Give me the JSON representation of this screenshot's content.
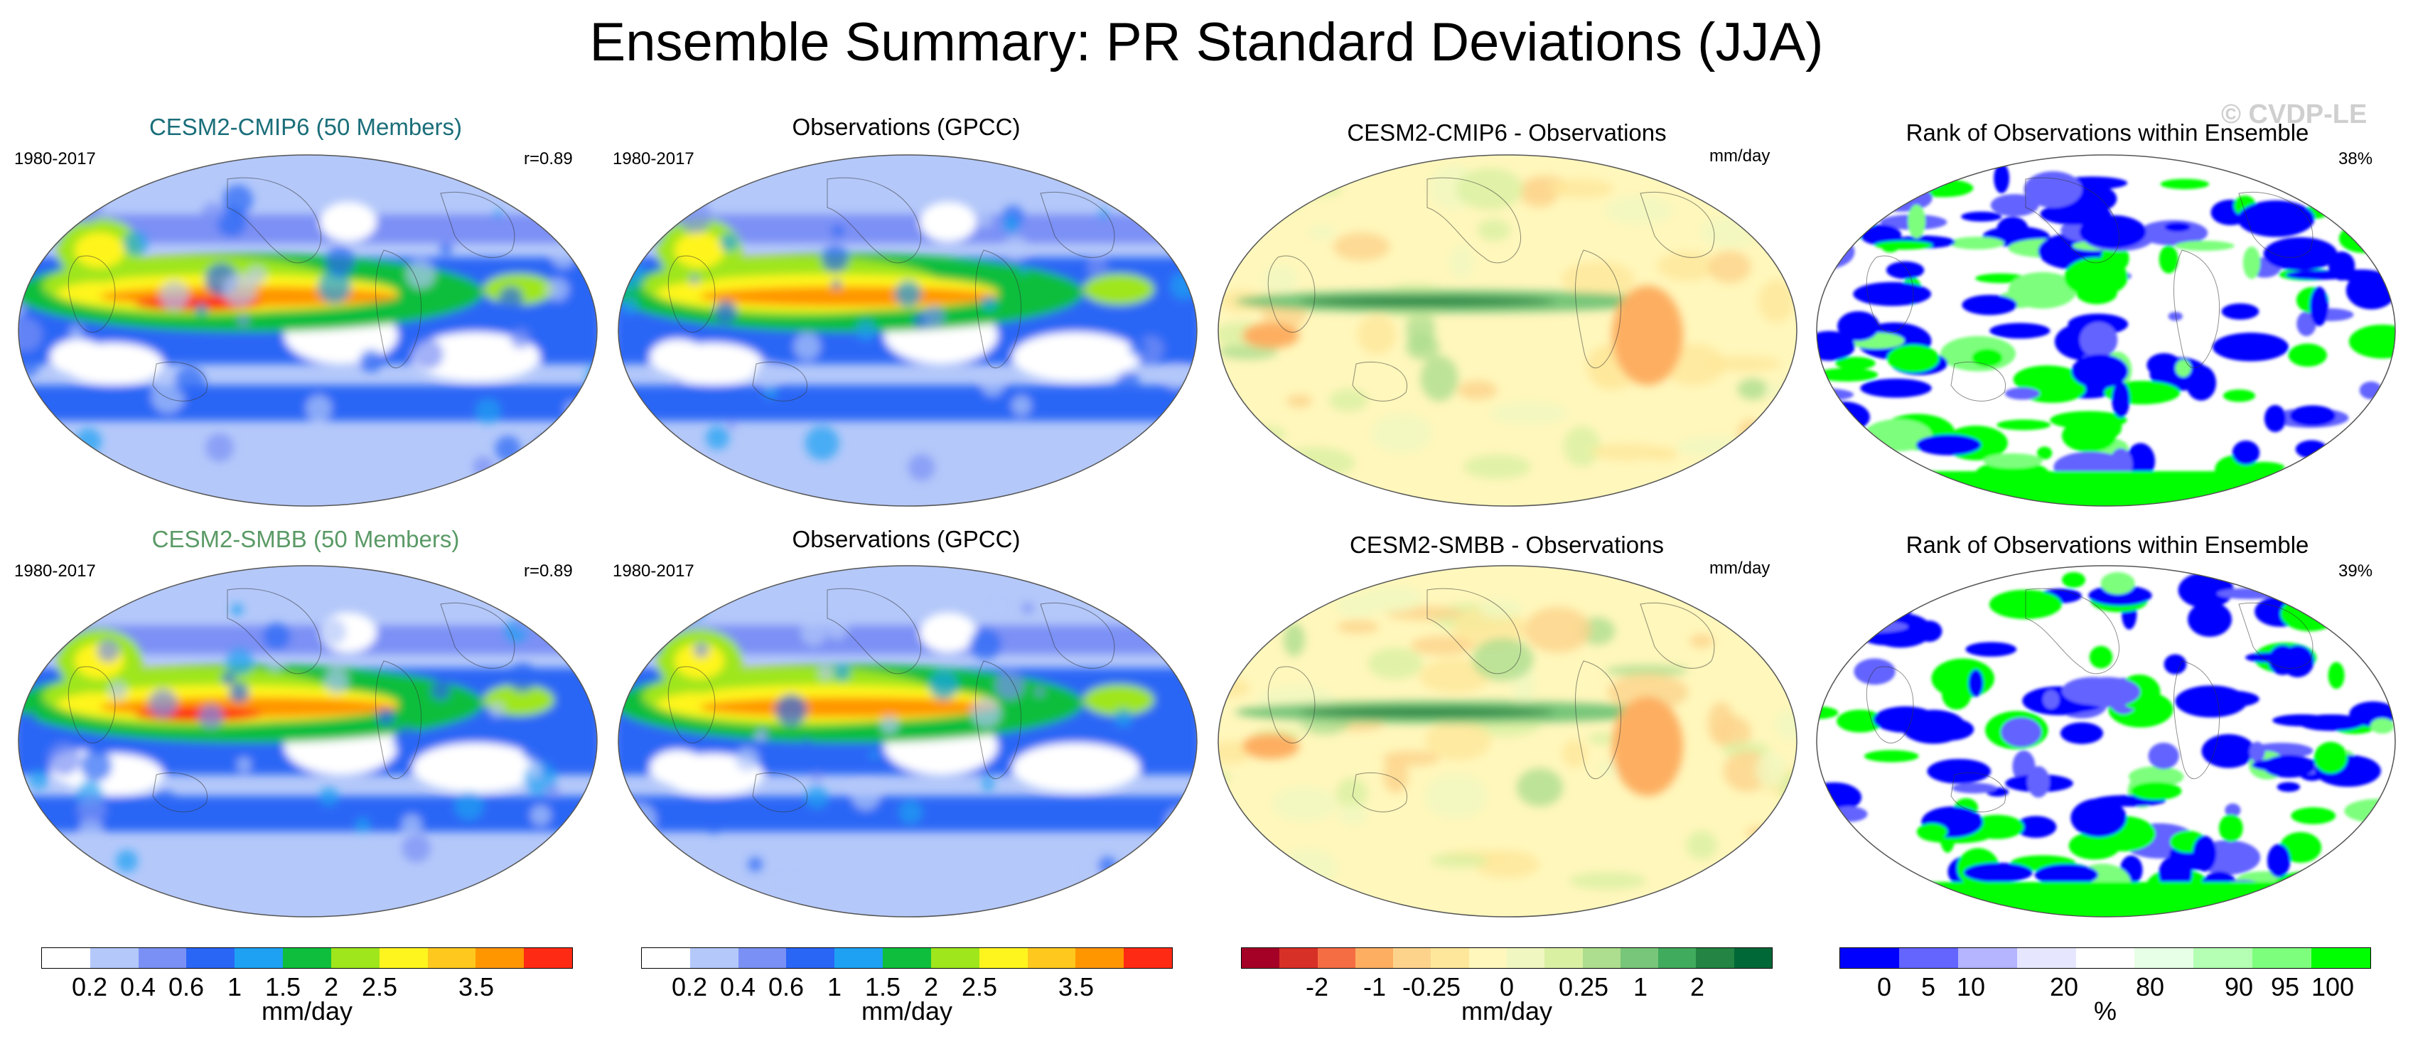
{
  "figure": {
    "title": "Ensemble Summary: PR Standard Deviations (JJA)",
    "watermark": "© CVDP-LE"
  },
  "colors": {
    "mmday": [
      "#ffffff",
      "#b4c8fa",
      "#7b90f5",
      "#2a66f5",
      "#1ea1f2",
      "#0ebe3c",
      "#9fe61c",
      "#fff51e",
      "#ffc81e",
      "#ff9600",
      "#ff2a14"
    ],
    "diff": [
      "#a50026",
      "#d73027",
      "#f46d43",
      "#fdae61",
      "#fdd38c",
      "#fee79a",
      "#fff7bc",
      "#f0f7c0",
      "#d9f0a3",
      "#addd8e",
      "#78c679",
      "#41ab5d",
      "#238443",
      "#006837"
    ],
    "rank": [
      "#0000ff",
      "#6464ff",
      "#b4b4ff",
      "#e6e6ff",
      "#ffffff",
      "#e6ffe6",
      "#b4ffb4",
      "#7dff7d",
      "#00ff00"
    ]
  },
  "panels": [
    {
      "title": "CESM2-CMIP6 (50 Members)",
      "title_color": "#1a6e7a",
      "left_label": "1980-2017",
      "right_label": "r=0.89"
    },
    {
      "title": "Observations (GPCC)",
      "title_color": "#000000",
      "left_label": "1980-2017",
      "right_label": ""
    },
    {
      "title": "CESM2-CMIP6 - Observations",
      "title_color": "#000000",
      "left_label": "",
      "right_label": "mm/day"
    },
    {
      "title": "Rank of Observations within Ensemble",
      "title_color": "#000000",
      "left_label": "",
      "right_label": "38%"
    },
    {
      "title": "CESM2-SMBB (50 Members)",
      "title_color": "#5a9a66",
      "left_label": "1980-2017",
      "right_label": "r=0.89"
    },
    {
      "title": "Observations (GPCC)",
      "title_color": "#000000",
      "left_label": "1980-2017",
      "right_label": ""
    },
    {
      "title": "CESM2-SMBB - Observations",
      "title_color": "#000000",
      "left_label": "",
      "right_label": "mm/day"
    },
    {
      "title": "Rank of Observations within Ensemble",
      "title_color": "#000000",
      "left_label": "",
      "right_label": "39%"
    }
  ],
  "chart_data": [
    {
      "type": "heatmap",
      "title": "CESM2-CMIP6 (50 Members)",
      "period": "1980-2017",
      "pattern_correlation": 0.89,
      "units": "mm/day",
      "color_levels": [
        0.2,
        0.4,
        0.6,
        1,
        1.5,
        2,
        2.5,
        3.5
      ]
    },
    {
      "type": "heatmap",
      "title": "Observations (GPCC)",
      "period": "1980-2017",
      "units": "mm/day",
      "color_levels": [
        0.2,
        0.4,
        0.6,
        1,
        1.5,
        2,
        2.5,
        3.5
      ]
    },
    {
      "type": "heatmap",
      "title": "CESM2-CMIP6 - Observations",
      "units": "mm/day",
      "color_levels": [
        -2,
        -1,
        -0.25,
        0,
        0.25,
        1,
        2
      ]
    },
    {
      "type": "heatmap",
      "title": "Rank of Observations within Ensemble",
      "units": "%",
      "summary_percent": 38,
      "color_levels": [
        0,
        5,
        10,
        20,
        80,
        90,
        95,
        100
      ]
    },
    {
      "type": "heatmap",
      "title": "CESM2-SMBB (50 Members)",
      "period": "1980-2017",
      "pattern_correlation": 0.89,
      "units": "mm/day",
      "color_levels": [
        0.2,
        0.4,
        0.6,
        1,
        1.5,
        2,
        2.5,
        3.5
      ]
    },
    {
      "type": "heatmap",
      "title": "Observations (GPCC)",
      "period": "1980-2017",
      "units": "mm/day",
      "color_levels": [
        0.2,
        0.4,
        0.6,
        1,
        1.5,
        2,
        2.5,
        3.5
      ]
    },
    {
      "type": "heatmap",
      "title": "CESM2-SMBB - Observations",
      "units": "mm/day",
      "color_levels": [
        -2,
        -1,
        -0.25,
        0,
        0.25,
        1,
        2
      ]
    },
    {
      "type": "heatmap",
      "title": "Rank of Observations within Ensemble",
      "units": "%",
      "summary_percent": 39,
      "color_levels": [
        0,
        5,
        10,
        20,
        80,
        90,
        95,
        100
      ]
    }
  ],
  "colorbars": [
    {
      "unit": "mm/day",
      "ticks": [
        "0.2",
        "0.4",
        "0.6",
        "1",
        "1.5",
        "2",
        "2.5",
        "3.5"
      ]
    },
    {
      "unit": "mm/day",
      "ticks": [
        "0.2",
        "0.4",
        "0.6",
        "1",
        "1.5",
        "2",
        "2.5",
        "3.5"
      ]
    },
    {
      "unit": "mm/day",
      "ticks": [
        "-2",
        "-1",
        "-0.25",
        "0",
        "0.25",
        "1",
        "2"
      ]
    },
    {
      "unit": "%",
      "ticks": [
        "0",
        "5",
        "10",
        "20",
        "80",
        "90",
        "95",
        "100"
      ]
    }
  ]
}
